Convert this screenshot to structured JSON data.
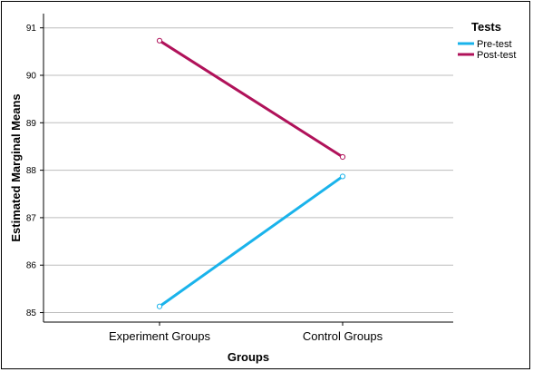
{
  "chart_data": {
    "type": "line",
    "categories": [
      "Experiment Groups",
      "Control Groups"
    ],
    "series": [
      {
        "name": "Pre-test",
        "values": [
          85.13,
          87.87
        ],
        "color": "#1ab3eb"
      },
      {
        "name": "Post-test",
        "values": [
          90.73,
          88.28
        ],
        "color": "#b0125a"
      }
    ],
    "xlabel": "Groups",
    "ylabel": "Estimated Marginal Means",
    "ylim": [
      84.8,
      91.3
    ],
    "yticks": [
      85,
      86,
      87,
      88,
      89,
      90,
      91
    ],
    "grid": true,
    "legend": {
      "title": "Tests",
      "placement": "top-right"
    }
  }
}
